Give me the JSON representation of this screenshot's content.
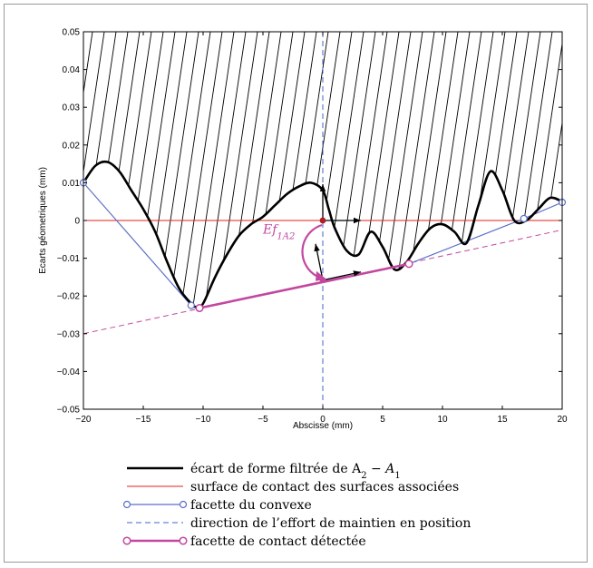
{
  "chart_data": {
    "type": "line",
    "xlabel": "Abscisse (mm)",
    "ylabel": "Ecarts géometriques (mm)",
    "xlim": [
      -20,
      20
    ],
    "ylim": [
      -0.05,
      0.05
    ],
    "xticks": [
      -20,
      -15,
      -10,
      -5,
      0,
      5,
      10,
      15,
      20
    ],
    "yticks": [
      -0.05,
      -0.04,
      -0.03,
      -0.02,
      -0.01,
      0,
      0.01,
      0.02,
      0.03,
      0.04,
      0.05
    ],
    "xtick_labels": [
      "−20",
      "−15",
      "−10",
      "−5",
      "0",
      "5",
      "10",
      "15",
      "20"
    ],
    "ytick_labels": [
      "−0.05",
      "−0.04",
      "−0.03",
      "−0.02",
      "−0.01",
      "0",
      "0.01",
      "0.02",
      "0.03",
      "0.04",
      "0.05"
    ],
    "grid": false,
    "hatched_region": "above the filtered form deviation curve",
    "series": [
      {
        "name": "écart de forme filtrée de A2 − A1",
        "style": "solid-black-thick",
        "color": "#000000",
        "x": [
          -20,
          -19,
          -18,
          -17,
          -16,
          -15,
          -14,
          -13,
          -12,
          -11,
          -10.5,
          -10,
          -9,
          -8,
          -7,
          -6,
          -5,
          -4,
          -3,
          -2,
          -1,
          0,
          0.5,
          1,
          2,
          3,
          4,
          5,
          6,
          7,
          8,
          9,
          10,
          11,
          12,
          13,
          14,
          15,
          16,
          17,
          18,
          19,
          20
        ],
        "y": [
          0.01,
          0.0145,
          0.0155,
          0.013,
          0.008,
          0.003,
          -0.003,
          -0.011,
          -0.018,
          -0.022,
          -0.023,
          -0.022,
          -0.015,
          -0.009,
          -0.004,
          -0.001,
          0.001,
          0.004,
          0.007,
          0.009,
          0.01,
          0.008,
          0.003,
          -0.002,
          -0.008,
          -0.009,
          -0.003,
          -0.007,
          -0.013,
          -0.011,
          -0.006,
          -0.002,
          -0.001,
          -0.003,
          -0.006,
          0.004,
          0.013,
          0.008,
          0.0,
          0.0,
          0.003,
          0.006,
          0.005
        ]
      },
      {
        "name": "surface de contact des surfaces associées",
        "style": "solid-red-thin",
        "color": "#e0231e",
        "x": [
          -20,
          20
        ],
        "y": [
          0,
          0
        ]
      },
      {
        "name": "facette du convexe",
        "style": "blue-line-open-circles",
        "color": "#5b6fc8",
        "x": [
          -20,
          -11,
          -10.3,
          7.2,
          16.8,
          20
        ],
        "y": [
          0.01,
          -0.0225,
          -0.0232,
          -0.0115,
          0.0005,
          0.0048
        ]
      },
      {
        "name": "direction de l’effort de maintien en position",
        "style": "dashed-blue-vertical",
        "color": "#3c67c8",
        "x": [
          0,
          0
        ],
        "y": [
          -0.05,
          0.05
        ]
      },
      {
        "name": "facette de contact détectée",
        "style": "magenta-thick-open-circles",
        "color": "#c2489f",
        "x": [
          -10.3,
          7.2
        ],
        "y": [
          -0.0232,
          -0.0115
        ]
      }
    ],
    "extension_line": {
      "color": "#c2489f",
      "style": "dashed",
      "x": [
        -20,
        20
      ],
      "y": [
        -0.03,
        -0.0025
      ]
    },
    "annotation": {
      "text": "Ef",
      "subscript": "1A2",
      "color": "#c2489f"
    },
    "legend": {
      "placement": "below",
      "entries": [
        {
          "label": "écart de forme filtrée de A",
          "sub1": "2",
          "mid": " − A",
          "sub2": "1",
          "symbol": "thick-black"
        },
        {
          "label": "surface de contact des surfaces associées",
          "symbol": "thin-red"
        },
        {
          "label": "facette du convexe",
          "symbol": "blue-circles"
        },
        {
          "label": "direction de l’effort de maintien en position",
          "symbol": "blue-dashed"
        },
        {
          "label": "facette de contact détectée",
          "symbol": "magenta-circles"
        }
      ]
    }
  }
}
